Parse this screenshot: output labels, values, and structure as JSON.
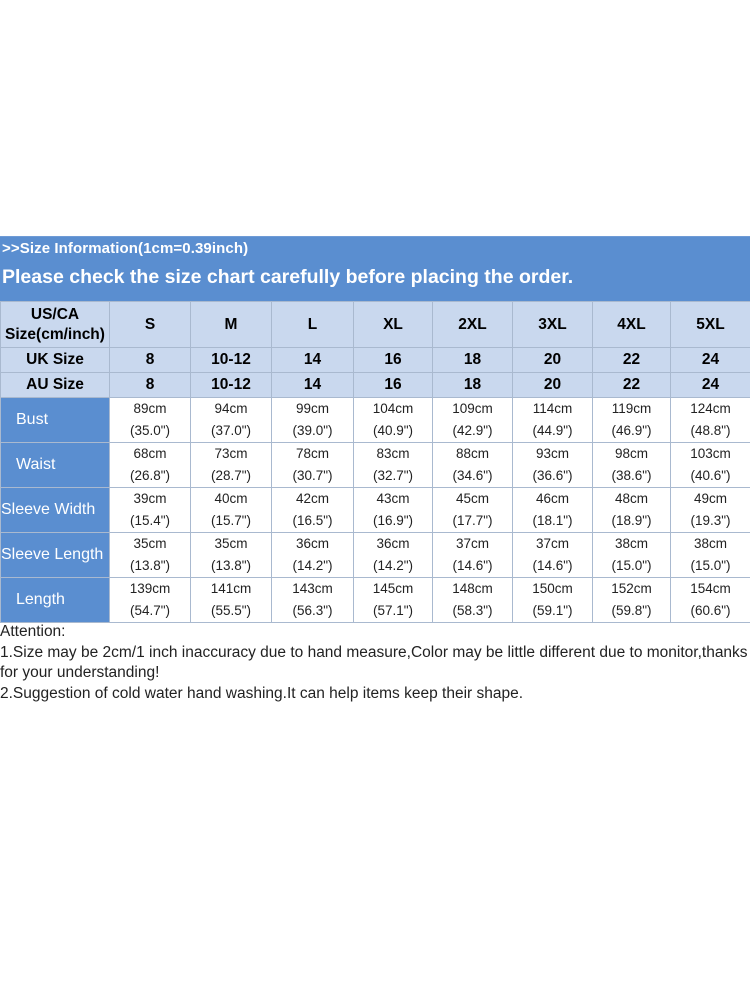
{
  "banner": {
    "info": ">>Size Information(1cm=0.39inch)",
    "notice": "Please check the size chart carefully before placing the order."
  },
  "table": {
    "us_label_line1": "US/CA",
    "us_label_line2": "Size(cm/inch)",
    "sizes": [
      "S",
      "M",
      "L",
      "XL",
      "2XL",
      "3XL",
      "4XL",
      "5XL"
    ],
    "uk_label": "UK Size",
    "uk": [
      "8",
      "10-12",
      "14",
      "16",
      "18",
      "20",
      "22",
      "24"
    ],
    "au_label": "AU Size",
    "au": [
      "8",
      "10-12",
      "14",
      "16",
      "18",
      "20",
      "22",
      "24"
    ],
    "measurements": [
      {
        "label": "Bust",
        "cm": [
          "89cm",
          "94cm",
          "99cm",
          "104cm",
          "109cm",
          "114cm",
          "119cm",
          "124cm"
        ],
        "inch": [
          "(35.0\")",
          "(37.0\")",
          "(39.0\")",
          "(40.9\")",
          "(42.9\")",
          "(44.9\")",
          "(46.9\")",
          "(48.8\")"
        ]
      },
      {
        "label": "Waist",
        "cm": [
          "68cm",
          "73cm",
          "78cm",
          "83cm",
          "88cm",
          "93cm",
          "98cm",
          "103cm"
        ],
        "inch": [
          "(26.8\")",
          "(28.7\")",
          "(30.7\")",
          "(32.7\")",
          "(34.6\")",
          "(36.6\")",
          "(38.6\")",
          "(40.6\")"
        ]
      },
      {
        "label": "Sleeve Width",
        "cm": [
          "39cm",
          "40cm",
          "42cm",
          "43cm",
          "45cm",
          "46cm",
          "48cm",
          "49cm"
        ],
        "inch": [
          "(15.4\")",
          "(15.7\")",
          "(16.5\")",
          "(16.9\")",
          "(17.7\")",
          "(18.1\")",
          "(18.9\")",
          "(19.3\")"
        ]
      },
      {
        "label": "Sleeve Length",
        "cm": [
          "35cm",
          "35cm",
          "36cm",
          "36cm",
          "37cm",
          "37cm",
          "38cm",
          "38cm"
        ],
        "inch": [
          "(13.8\")",
          "(13.8\")",
          "(14.2\")",
          "(14.2\")",
          "(14.6\")",
          "(14.6\")",
          "(15.0\")",
          "(15.0\")"
        ]
      },
      {
        "label": "Length",
        "cm": [
          "139cm",
          "141cm",
          "143cm",
          "145cm",
          "148cm",
          "150cm",
          "152cm",
          "154cm"
        ],
        "inch": [
          "(54.7\")",
          "(55.5\")",
          "(56.3\")",
          "(57.1\")",
          "(58.3\")",
          "(59.1\")",
          "(59.8\")",
          "(60.6\")"
        ]
      }
    ]
  },
  "notes": {
    "title": "Attention:",
    "line1": "1.Size may be 2cm/1 inch inaccuracy due to hand measure,Color may be little different due to monitor,thanks for your understanding!",
    "line2": "2.Suggestion of cold water hand washing.It can help items keep their shape."
  },
  "colors": {
    "banner_blue": "#5a8ed0",
    "header_light_blue": "#c9d8ee"
  }
}
